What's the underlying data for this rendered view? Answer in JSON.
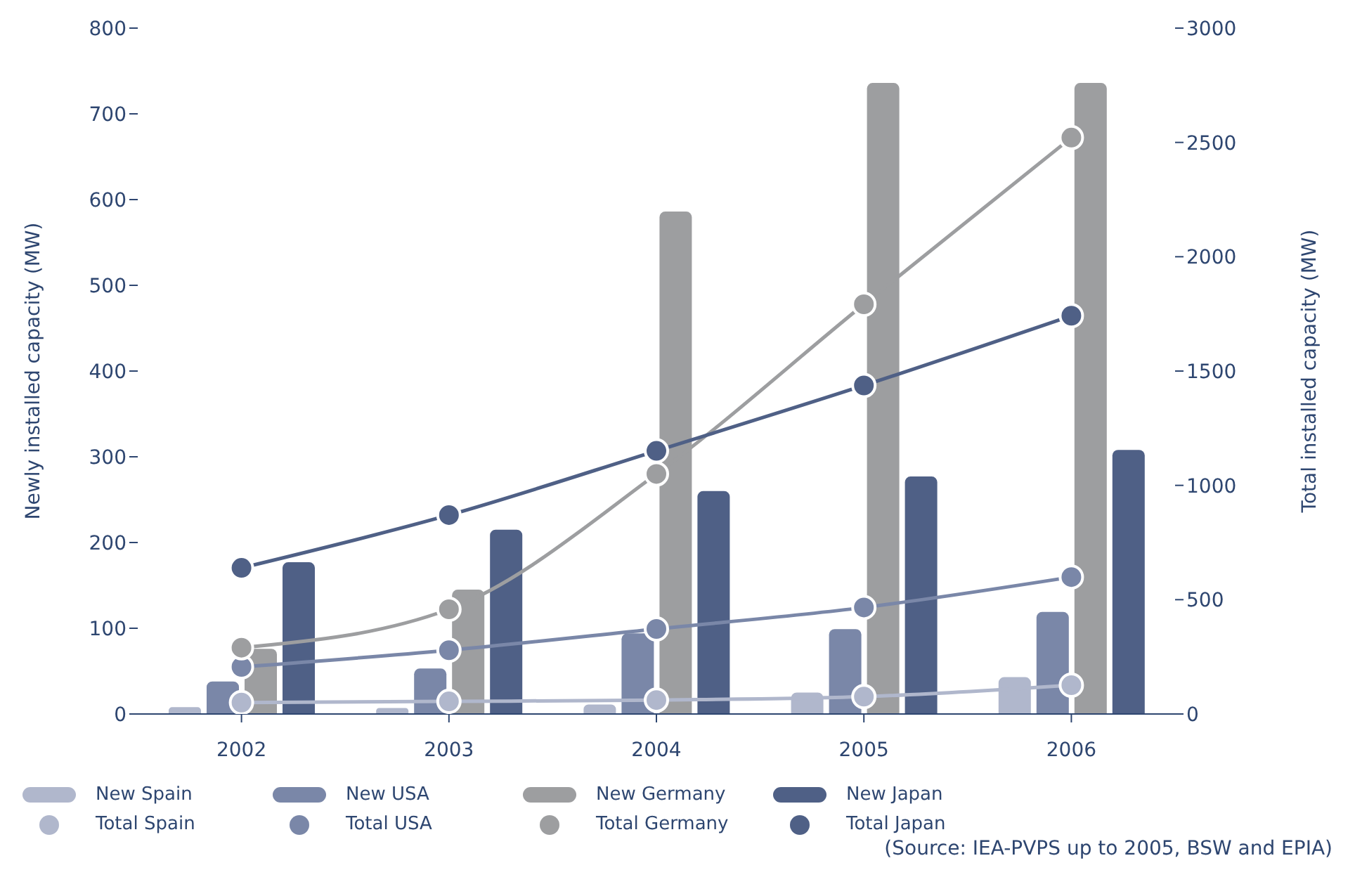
{
  "chart_data": {
    "type": "bar",
    "ylabel": "Newly installed capacity (MW)",
    "y2label": "Total installed capacity (MW)",
    "categories": [
      "2002",
      "2003",
      "2004",
      "2005",
      "2006"
    ],
    "series": [
      {
        "name": "New Spain",
        "color": "#b0b7cc",
        "values": [
          8,
          7,
          11,
          25,
          43
        ]
      },
      {
        "name": "New USA",
        "color": "#7a87a8",
        "values": [
          38,
          53,
          94,
          99,
          119
        ]
      },
      {
        "name": "New Germany",
        "color": "#9d9ea0",
        "values": [
          76,
          145,
          586,
          736,
          736
        ]
      },
      {
        "name": "New Japan",
        "color": "#4f6086",
        "values": [
          177,
          215,
          260,
          277,
          308
        ]
      },
      {
        "name": "Total Spain",
        "type": "line",
        "axis": "y2",
        "color": "#b0b7cc",
        "values": [
          50,
          55,
          61,
          76,
          126
        ]
      },
      {
        "name": "Total USA",
        "type": "line",
        "axis": "y2",
        "color": "#7a87a8",
        "values": [
          206,
          279,
          372,
          466,
          599
        ]
      },
      {
        "name": "Total Germany",
        "type": "line",
        "axis": "y2",
        "color": "#9d9ea0",
        "values": [
          290,
          458,
          1050,
          1792,
          2521
        ]
      },
      {
        "name": "Total Japan",
        "type": "line",
        "axis": "y2",
        "color": "#4f6086",
        "values": [
          639,
          870,
          1151,
          1437,
          1742
        ]
      }
    ],
    "ylim": [
      0,
      800
    ],
    "yticks": [
      0,
      100,
      200,
      300,
      400,
      500,
      600,
      700,
      800
    ],
    "y2lim": [
      0,
      3000
    ],
    "y2ticks": [
      0,
      500,
      1000,
      1500,
      2000,
      2500,
      3000
    ],
    "legend": "bottom",
    "marker": "circle",
    "line_style": "solid",
    "annotations": [
      "(Source: IEA-PVPS up to 2005, BSW and EPIA)"
    ]
  }
}
